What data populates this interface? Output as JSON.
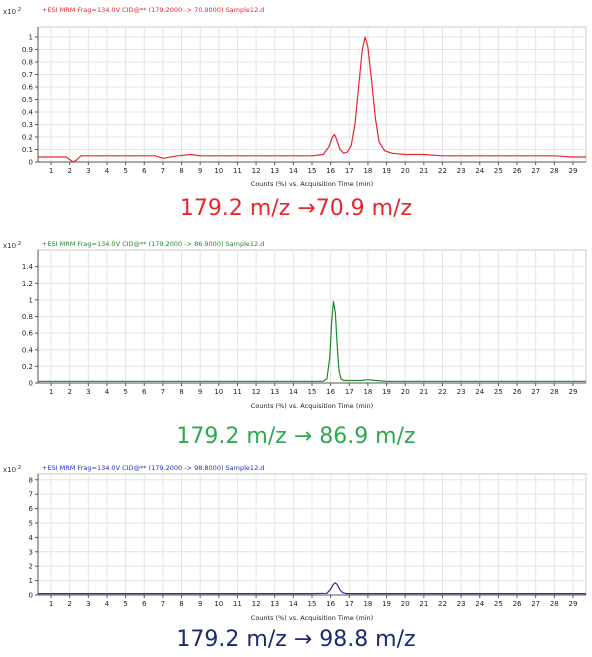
{
  "charts": [
    {
      "header": "+ESI MRM Frag=134.0V CID@** (179.2000 -> 70.9000) Sample12.d",
      "multiplier": "x10 2",
      "xlabel": "Counts (%) vs. Acquisition Time (min)",
      "caption": "179.2 m/z →70.9 m/z",
      "color": "#e8262b",
      "caption_color": "#e8262b"
    },
    {
      "header": "+ESI MRM Frag=134.0V CID@** (179.2000 -> 86.9000) Sample12.d",
      "multiplier": "x10 2",
      "xlabel": "Counts (%) vs. Acquisition Time (min)",
      "caption": "179.2 m/z → 86.9 m/z",
      "color": "#1d8a2a",
      "caption_color": "#2fa84f"
    },
    {
      "header": "+ESI MRM Frag=134.0V CID@** (179.2000 -> 98.8000) Sample12.d",
      "multiplier": "x10 2",
      "xlabel": "Counts (%) vs. Acquisition Time (min)",
      "caption": "179.2 m/z → 98.8 m/z",
      "color": "#1f2fbf",
      "caption_color": "#1c2a6e"
    }
  ],
  "chart_data": [
    {
      "type": "line",
      "title": "+ESI MRM Frag=134.0V CID@** (179.2000 -> 70.9000) Sample12.d",
      "xlabel": "Counts (%) vs. Acquisition Time (min)",
      "ylabel": "x10 2",
      "xlim": [
        0.3,
        29.7
      ],
      "ylim": [
        0,
        1.08
      ],
      "x_ticks": [
        1,
        2,
        3,
        4,
        5,
        6,
        7,
        8,
        9,
        10,
        11,
        12,
        13,
        14,
        15,
        16,
        17,
        18,
        19,
        20,
        21,
        22,
        23,
        24,
        25,
        26,
        27,
        28,
        29
      ],
      "y_ticks": [
        "0",
        "0.1",
        "0.2",
        "0.3",
        "0.4",
        "0.5",
        "0.6",
        "0.7",
        "0.8",
        "0.9",
        "1"
      ],
      "grid": true,
      "series": [
        {
          "x": [
            0.3,
            1.0,
            1.8,
            2.0,
            2.2,
            2.4,
            2.6,
            3.0,
            4.0,
            5.0,
            6.0,
            6.6,
            7.0,
            7.8,
            8.5,
            9.0,
            10.0,
            11.0,
            12.0,
            13.0,
            14.0,
            15.0,
            15.6,
            15.9,
            16.1,
            16.2,
            16.3,
            16.5,
            16.7,
            16.9,
            17.1,
            17.3,
            17.5,
            17.7,
            17.85,
            18.0,
            18.2,
            18.4,
            18.6,
            18.9,
            19.3,
            20.0,
            21.0,
            22.0,
            23.0,
            24.0,
            25.0,
            26.0,
            27.0,
            28.0,
            29.0,
            29.7
          ],
          "y": [
            0.04,
            0.04,
            0.04,
            0.02,
            0.0,
            0.02,
            0.05,
            0.05,
            0.05,
            0.05,
            0.05,
            0.05,
            0.03,
            0.05,
            0.06,
            0.05,
            0.05,
            0.05,
            0.05,
            0.05,
            0.05,
            0.05,
            0.06,
            0.12,
            0.2,
            0.22,
            0.19,
            0.1,
            0.07,
            0.08,
            0.13,
            0.3,
            0.6,
            0.9,
            1.0,
            0.92,
            0.65,
            0.35,
            0.16,
            0.09,
            0.07,
            0.06,
            0.06,
            0.05,
            0.05,
            0.05,
            0.05,
            0.05,
            0.05,
            0.05,
            0.04,
            0.04
          ]
        }
      ]
    },
    {
      "type": "line",
      "title": "+ESI MRM Frag=134.0V CID@** (179.2000 -> 86.9000) Sample12.d",
      "xlabel": "Counts (%) vs. Acquisition Time (min)",
      "ylabel": "x10 2",
      "xlim": [
        0.3,
        29.7
      ],
      "ylim": [
        0,
        1.6
      ],
      "x_ticks": [
        1,
        2,
        3,
        4,
        5,
        6,
        7,
        8,
        9,
        10,
        11,
        12,
        13,
        14,
        15,
        16,
        17,
        18,
        19,
        20,
        21,
        22,
        23,
        24,
        25,
        26,
        27,
        28,
        29
      ],
      "y_ticks": [
        "0",
        "0.2",
        "0.4",
        "0.6",
        "0.8",
        "1",
        "1.2",
        "1.4"
      ],
      "grid": true,
      "series": [
        {
          "x": [
            0.3,
            5.0,
            10.0,
            15.0,
            15.6,
            15.8,
            15.95,
            16.05,
            16.15,
            16.25,
            16.35,
            16.45,
            16.55,
            16.7,
            16.9,
            17.2,
            17.6,
            18.0,
            18.4,
            19.0,
            20.0,
            25.0,
            29.7
          ],
          "y": [
            0.02,
            0.02,
            0.02,
            0.02,
            0.02,
            0.05,
            0.3,
            0.72,
            0.98,
            0.85,
            0.45,
            0.15,
            0.05,
            0.03,
            0.03,
            0.03,
            0.03,
            0.04,
            0.03,
            0.02,
            0.02,
            0.02,
            0.02
          ]
        }
      ]
    },
    {
      "type": "line",
      "title": "+ESI MRM Frag=134.0V CID@** (179.2000 -> 98.8000) Sample12.d",
      "xlabel": "Counts (%) vs. Acquisition Time (min)",
      "ylabel": "x10 2",
      "xlim": [
        0.3,
        29.7
      ],
      "ylim": [
        0,
        8.4
      ],
      "x_ticks": [
        1,
        2,
        3,
        4,
        5,
        6,
        7,
        8,
        9,
        10,
        11,
        12,
        13,
        14,
        15,
        16,
        17,
        18,
        19,
        20,
        21,
        22,
        23,
        24,
        25,
        26,
        27,
        28,
        29
      ],
      "y_ticks": [
        "0",
        "1",
        "2",
        "3",
        "4",
        "5",
        "6",
        "7",
        "8"
      ],
      "grid": true,
      "series": [
        {
          "x": [
            0.3,
            5.0,
            10.0,
            15.0,
            15.8,
            16.0,
            16.15,
            16.25,
            16.35,
            16.5,
            16.65,
            16.85,
            17.2,
            20.0,
            25.0,
            29.7
          ],
          "y": [
            0.1,
            0.1,
            0.1,
            0.1,
            0.12,
            0.4,
            0.75,
            0.85,
            0.72,
            0.35,
            0.15,
            0.1,
            0.1,
            0.1,
            0.1,
            0.1
          ]
        }
      ]
    }
  ]
}
